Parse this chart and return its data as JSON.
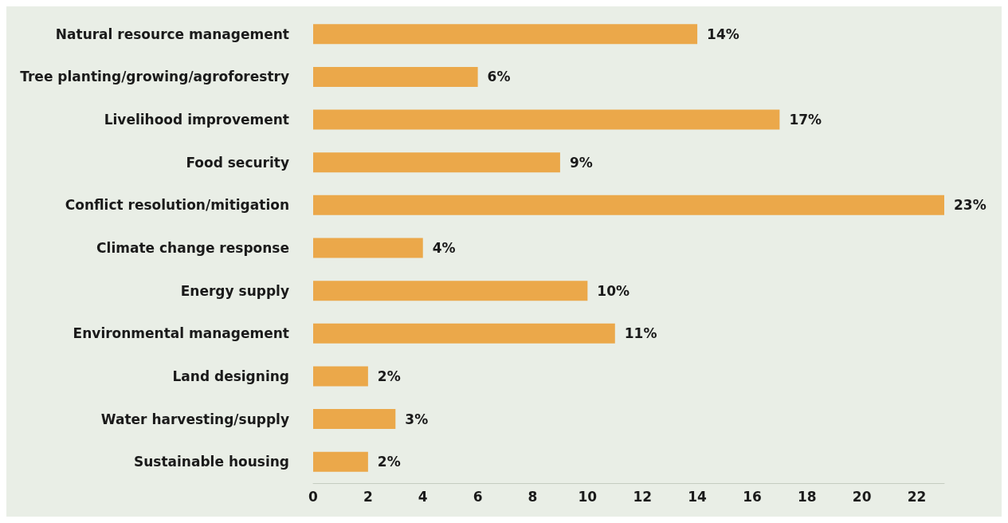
{
  "chart_data": {
    "type": "bar",
    "orientation": "horizontal",
    "categories": [
      "Natural resource management",
      "Tree planting/growing/agroforestry",
      "Livelihood improvement",
      "Food security",
      "Conflict resolution/mitigation",
      "Climate change response",
      "Energy supply",
      "Environmental management",
      "Land designing",
      "Water harvesting/supply",
      "Sustainable housing"
    ],
    "values": [
      14,
      6,
      17,
      9,
      23,
      4,
      10,
      11,
      2,
      3,
      2
    ],
    "value_labels": [
      "14%",
      "6%",
      "17%",
      "9%",
      "23%",
      "4%",
      "10%",
      "11%",
      "2%",
      "3%",
      "2%"
    ],
    "color": "#eba84a",
    "xlim": [
      0,
      23
    ],
    "xticks": [
      0,
      2,
      4,
      6,
      8,
      10,
      12,
      14,
      16,
      18,
      20,
      22
    ],
    "grid": false
  }
}
